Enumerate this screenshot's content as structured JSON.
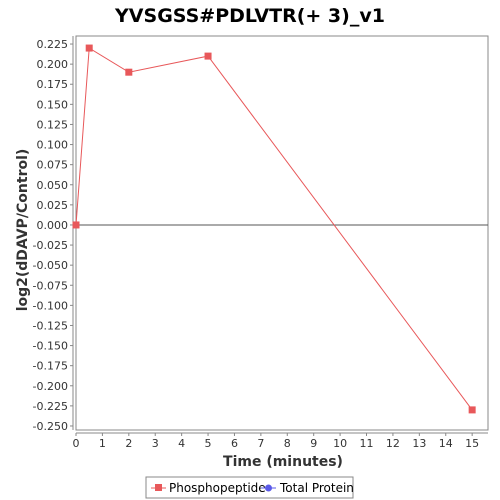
{
  "chart_data": {
    "type": "line",
    "title": "YVSGSS#PDLVTR(+ 3)_v1",
    "xlabel": "Time (minutes)",
    "ylabel": "log2(dDAVP/Control)",
    "xlim": [
      0,
      15.6
    ],
    "ylim": [
      -0.255,
      0.235
    ],
    "xticks": [
      0,
      1,
      2,
      3,
      4,
      5,
      6,
      7,
      8,
      9,
      10,
      11,
      12,
      13,
      14,
      15
    ],
    "yticks": [
      0.225,
      0.2,
      0.175,
      0.15,
      0.125,
      0.1,
      0.075,
      0.05,
      0.025,
      0.0,
      -0.025,
      -0.05,
      -0.075,
      -0.1,
      -0.125,
      -0.15,
      -0.175,
      -0.2,
      -0.225,
      -0.25
    ],
    "ytick_labels": [
      "0.225",
      "0.200",
      "0.175",
      "0.150",
      "0.125",
      "0.100",
      "0.075",
      "0.050",
      "0.025",
      "0.000",
      "-0.025",
      "-0.050",
      "-0.075",
      "-0.100",
      "-0.125",
      "-0.150",
      "-0.175",
      "-0.200",
      "-0.225",
      "-0.250"
    ],
    "zero_line": true,
    "grid": false,
    "legend_position": "bottom",
    "series": [
      {
        "name": "Phosphopeptide",
        "color": "#e8585a",
        "marker": "square",
        "x": [
          0,
          0.5,
          2,
          5,
          15
        ],
        "y": [
          0.0,
          0.22,
          0.19,
          0.21,
          -0.23
        ]
      },
      {
        "name": "Total Protein",
        "color": "#5a5ae8",
        "marker": "circle",
        "x": [],
        "y": []
      }
    ]
  }
}
